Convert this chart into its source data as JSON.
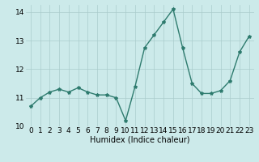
{
  "x": [
    0,
    1,
    2,
    3,
    4,
    5,
    6,
    7,
    8,
    9,
    10,
    11,
    12,
    13,
    14,
    15,
    16,
    17,
    18,
    19,
    20,
    21,
    22,
    23
  ],
  "y": [
    10.7,
    11.0,
    11.2,
    11.3,
    11.2,
    11.35,
    11.2,
    11.1,
    11.1,
    11.0,
    10.2,
    11.4,
    12.75,
    13.2,
    13.65,
    14.1,
    12.75,
    11.5,
    11.15,
    11.15,
    11.25,
    11.6,
    12.6,
    13.15
  ],
  "line_color": "#2e7b6e",
  "marker": "*",
  "markersize": 3,
  "linewidth": 1.0,
  "xlabel": "Humidex (Indice chaleur)",
  "ylabel": "",
  "xlim": [
    -0.5,
    23.5
  ],
  "ylim": [
    10.0,
    14.25
  ],
  "yticks": [
    10,
    11,
    12,
    13,
    14
  ],
  "xtick_labels": [
    "0",
    "1",
    "2",
    "3",
    "4",
    "5",
    "6",
    "7",
    "8",
    "9",
    "10",
    "11",
    "12",
    "13",
    "14",
    "15",
    "16",
    "17",
    "18",
    "19",
    "20",
    "21",
    "22",
    "23"
  ],
  "bg_color": "#cceaea",
  "grid_color": "#aacccc",
  "fig_bg": "#cceaea",
  "xlabel_fontsize": 7,
  "tick_fontsize": 6.5
}
